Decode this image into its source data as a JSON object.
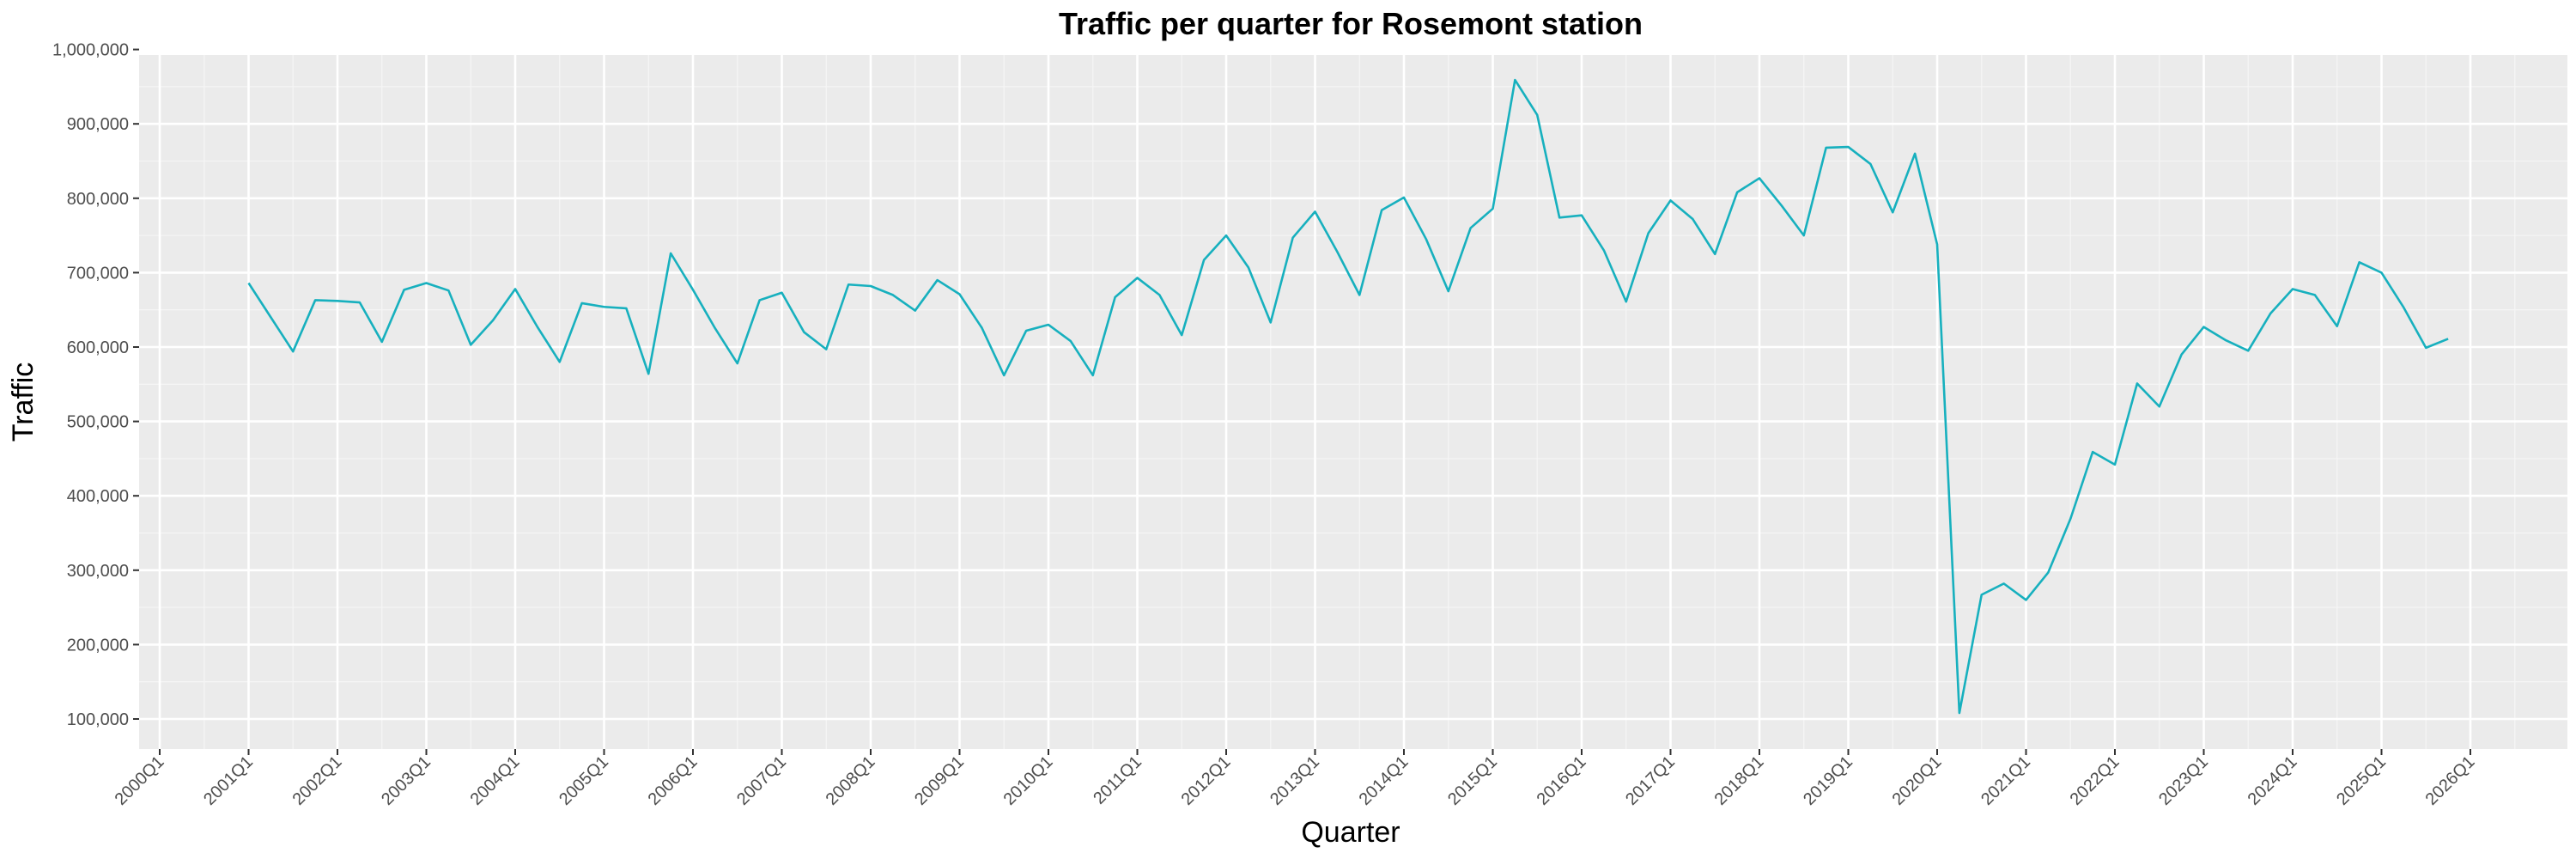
{
  "chart_data": {
    "type": "line",
    "title": "Traffic per quarter for Rosemont station",
    "xlabel": "Quarter",
    "ylabel": "Traffic",
    "x_ticks": [
      "2000Q1",
      "2001Q1",
      "2002Q1",
      "2003Q1",
      "2004Q1",
      "2005Q1",
      "2006Q1",
      "2007Q1",
      "2008Q1",
      "2009Q1",
      "2010Q1",
      "2011Q1",
      "2012Q1",
      "2013Q1",
      "2014Q1",
      "2015Q1",
      "2016Q1",
      "2017Q1",
      "2018Q1",
      "2019Q1",
      "2020Q1",
      "2021Q1",
      "2022Q1",
      "2023Q1",
      "2024Q1",
      "2025Q1",
      "2026Q1"
    ],
    "y_ticks": [
      "100,000",
      "200,000",
      "300,000",
      "400,000",
      "500,000",
      "600,000",
      "700,000",
      "800,000",
      "900,000",
      "1,000,000"
    ],
    "ylim": [
      100000,
      1000000
    ],
    "xlim": [
      "2000Q1",
      "2026Q1"
    ],
    "grid": true,
    "series": [
      {
        "color": "#17B0BE",
        "points": [
          {
            "q": "2001Q1",
            "v": 686000
          },
          {
            "q": "2001Q2",
            "v": 640000
          },
          {
            "q": "2001Q3",
            "v": 594000
          },
          {
            "q": "2001Q4",
            "v": 663000
          },
          {
            "q": "2002Q1",
            "v": 662000
          },
          {
            "q": "2002Q2",
            "v": 660000
          },
          {
            "q": "2002Q3",
            "v": 607000
          },
          {
            "q": "2002Q4",
            "v": 677000
          },
          {
            "q": "2003Q1",
            "v": 686000
          },
          {
            "q": "2003Q2",
            "v": 676000
          },
          {
            "q": "2003Q3",
            "v": 603000
          },
          {
            "q": "2003Q4",
            "v": 636000
          },
          {
            "q": "2004Q1",
            "v": 678000
          },
          {
            "q": "2004Q2",
            "v": 627000
          },
          {
            "q": "2004Q3",
            "v": 580000
          },
          {
            "q": "2004Q4",
            "v": 659000
          },
          {
            "q": "2005Q1",
            "v": 654000
          },
          {
            "q": "2005Q2",
            "v": 652000
          },
          {
            "q": "2005Q3",
            "v": 564000
          },
          {
            "q": "2005Q4",
            "v": 726000
          },
          {
            "q": "2006Q1",
            "v": 677000
          },
          {
            "q": "2006Q2",
            "v": 625000
          },
          {
            "q": "2006Q3",
            "v": 578000
          },
          {
            "q": "2006Q4",
            "v": 663000
          },
          {
            "q": "2007Q1",
            "v": 673000
          },
          {
            "q": "2007Q2",
            "v": 620000
          },
          {
            "q": "2007Q3",
            "v": 597000
          },
          {
            "q": "2007Q4",
            "v": 684000
          },
          {
            "q": "2008Q1",
            "v": 682000
          },
          {
            "q": "2008Q2",
            "v": 670000
          },
          {
            "q": "2008Q3",
            "v": 649000
          },
          {
            "q": "2008Q4",
            "v": 690000
          },
          {
            "q": "2009Q1",
            "v": 671000
          },
          {
            "q": "2009Q2",
            "v": 626000
          },
          {
            "q": "2009Q3",
            "v": 562000
          },
          {
            "q": "2009Q4",
            "v": 622000
          },
          {
            "q": "2010Q1",
            "v": 630000
          },
          {
            "q": "2010Q2",
            "v": 608000
          },
          {
            "q": "2010Q3",
            "v": 562000
          },
          {
            "q": "2010Q4",
            "v": 667000
          },
          {
            "q": "2011Q1",
            "v": 693000
          },
          {
            "q": "2011Q2",
            "v": 670000
          },
          {
            "q": "2011Q3",
            "v": 616000
          },
          {
            "q": "2011Q4",
            "v": 717000
          },
          {
            "q": "2012Q1",
            "v": 750000
          },
          {
            "q": "2012Q2",
            "v": 707000
          },
          {
            "q": "2012Q3",
            "v": 633000
          },
          {
            "q": "2012Q4",
            "v": 747000
          },
          {
            "q": "2013Q1",
            "v": 782000
          },
          {
            "q": "2013Q2",
            "v": 728000
          },
          {
            "q": "2013Q3",
            "v": 670000
          },
          {
            "q": "2013Q4",
            "v": 784000
          },
          {
            "q": "2014Q1",
            "v": 801000
          },
          {
            "q": "2014Q2",
            "v": 745000
          },
          {
            "q": "2014Q3",
            "v": 675000
          },
          {
            "q": "2014Q4",
            "v": 760000
          },
          {
            "q": "2015Q1",
            "v": 786000
          },
          {
            "q": "2015Q2",
            "v": 959000
          },
          {
            "q": "2015Q3",
            "v": 912000
          },
          {
            "q": "2015Q4",
            "v": 774000
          },
          {
            "q": "2016Q1",
            "v": 777000
          },
          {
            "q": "2016Q2",
            "v": 730000
          },
          {
            "q": "2016Q3",
            "v": 661000
          },
          {
            "q": "2016Q4",
            "v": 753000
          },
          {
            "q": "2017Q1",
            "v": 797000
          },
          {
            "q": "2017Q2",
            "v": 772000
          },
          {
            "q": "2017Q3",
            "v": 725000
          },
          {
            "q": "2017Q4",
            "v": 808000
          },
          {
            "q": "2018Q1",
            "v": 827000
          },
          {
            "q": "2018Q2",
            "v": 790000
          },
          {
            "q": "2018Q3",
            "v": 750000
          },
          {
            "q": "2018Q4",
            "v": 868000
          },
          {
            "q": "2019Q1",
            "v": 869000
          },
          {
            "q": "2019Q2",
            "v": 846000
          },
          {
            "q": "2019Q3",
            "v": 781000
          },
          {
            "q": "2019Q4",
            "v": 860000
          },
          {
            "q": "2020Q1",
            "v": 738000
          },
          {
            "q": "2020Q2",
            "v": 108000
          },
          {
            "q": "2020Q3",
            "v": 267000
          },
          {
            "q": "2020Q4",
            "v": 282000
          },
          {
            "q": "2021Q1",
            "v": 260000
          },
          {
            "q": "2021Q2",
            "v": 297000
          },
          {
            "q": "2021Q3",
            "v": 369000
          },
          {
            "q": "2021Q4",
            "v": 459000
          },
          {
            "q": "2022Q1",
            "v": 442000
          },
          {
            "q": "2022Q2",
            "v": 551000
          },
          {
            "q": "2022Q3",
            "v": 520000
          },
          {
            "q": "2022Q4",
            "v": 590000
          },
          {
            "q": "2023Q1",
            "v": 627000
          },
          {
            "q": "2023Q2",
            "v": 609000
          },
          {
            "q": "2023Q3",
            "v": 595000
          },
          {
            "q": "2023Q4",
            "v": 645000
          },
          {
            "q": "2024Q1",
            "v": 678000
          },
          {
            "q": "2024Q2",
            "v": 670000
          },
          {
            "q": "2024Q3",
            "v": 628000
          },
          {
            "q": "2024Q4",
            "v": 714000
          },
          {
            "q": "2025Q1",
            "v": 700000
          },
          {
            "q": "2025Q2",
            "v": 653000
          },
          {
            "q": "2025Q3",
            "v": 599000
          },
          {
            "q": "2025Q4",
            "v": 611000
          }
        ]
      }
    ]
  }
}
